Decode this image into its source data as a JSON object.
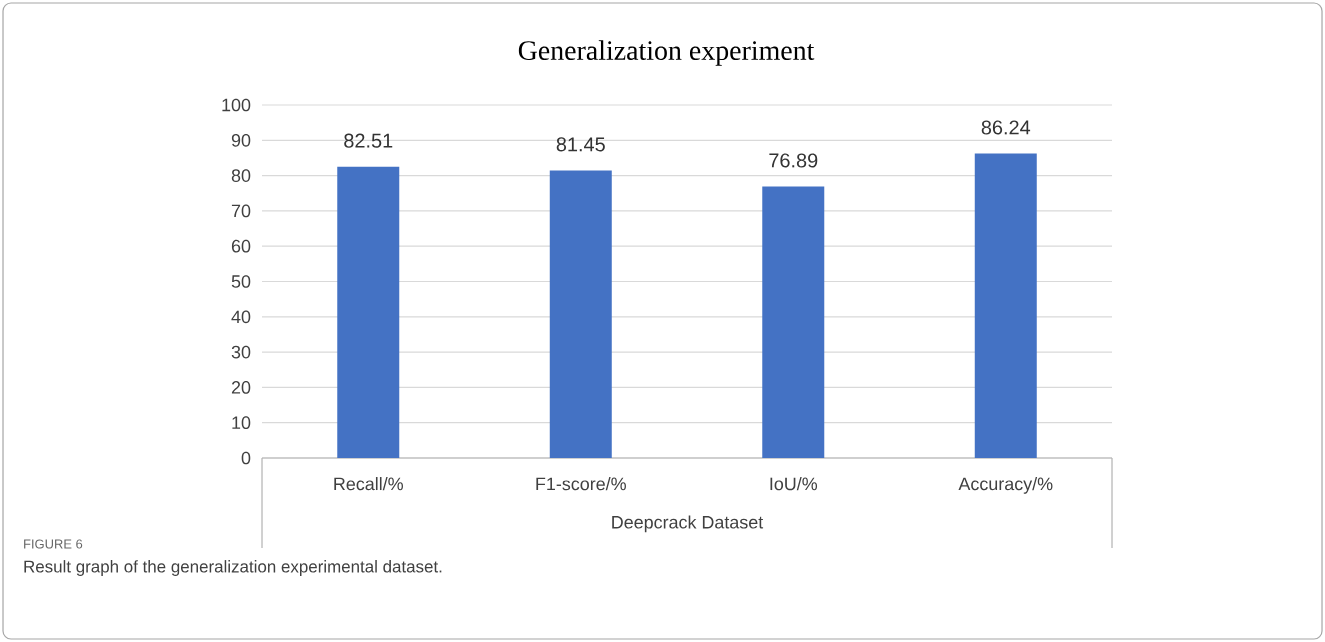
{
  "chart_data": {
    "type": "bar",
    "title": "Generalization experiment",
    "categories": [
      "Recall/%",
      "F1-score/%",
      "IoU/%",
      "Accuracy/%"
    ],
    "values": [
      82.51,
      81.45,
      76.89,
      86.24
    ],
    "color": "#4472c4",
    "xlabel": "Deepcrack Dataset",
    "ylim": [
      0,
      100
    ],
    "yticks": [
      0,
      10,
      20,
      30,
      40,
      50,
      60,
      70,
      80,
      90,
      100
    ],
    "grid": "y",
    "data_labels": true,
    "annotations": [
      "FIGURE 6",
      "Result graph of the generalization experimental dataset."
    ]
  }
}
